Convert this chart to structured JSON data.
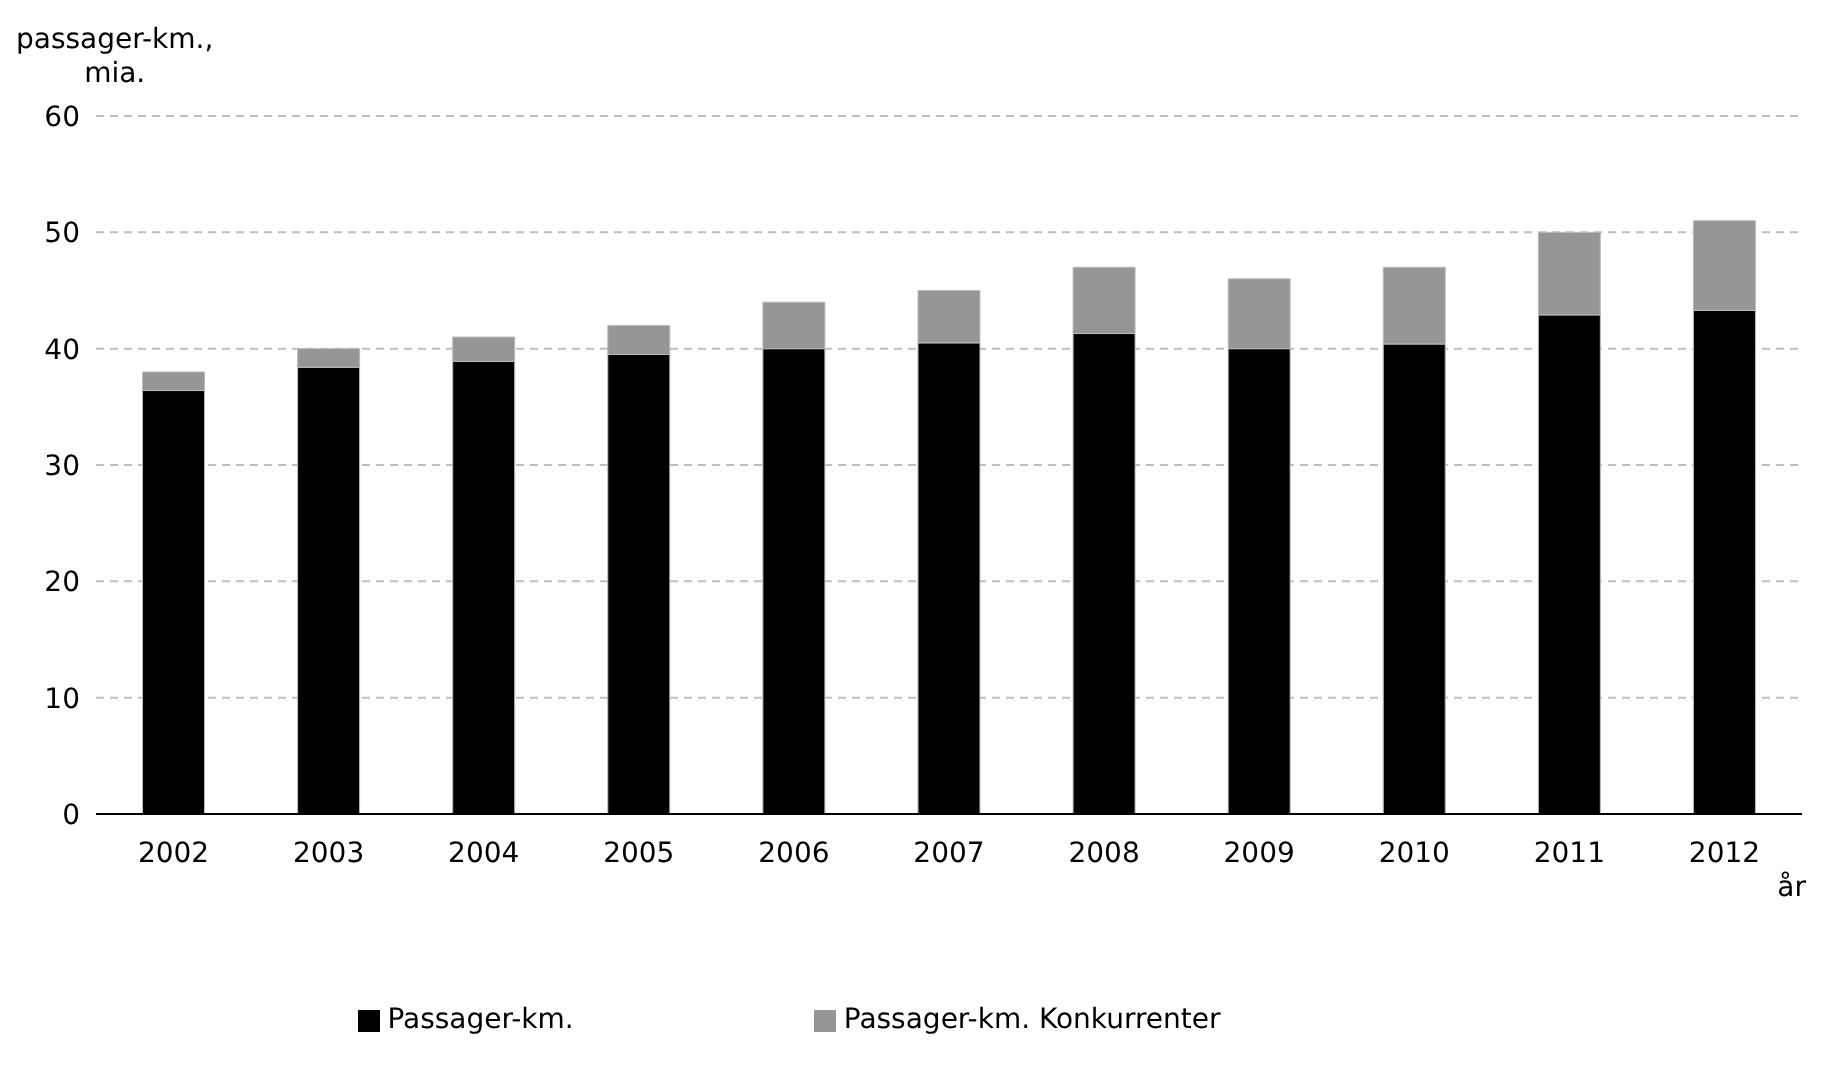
{
  "chart_data": {
    "type": "bar",
    "stacked": true,
    "ylabel": "passager-km.,\nmia.",
    "xlabel": "år",
    "categories": [
      "2002",
      "2003",
      "2004",
      "2005",
      "2006",
      "2007",
      "2008",
      "2009",
      "2010",
      "2011",
      "2012"
    ],
    "series": [
      {
        "name": "Passager-km.",
        "color": "#000000",
        "values": [
          36.4,
          38.4,
          38.9,
          39.5,
          40.0,
          40.5,
          41.3,
          40.0,
          40.4,
          42.9,
          43.3
        ]
      },
      {
        "name": "Passager-km. Konkurrenter",
        "color": "#969696",
        "values": [
          1.6,
          1.6,
          2.1,
          2.5,
          4.0,
          4.5,
          5.7,
          6.0,
          6.6,
          7.1,
          7.7
        ]
      }
    ],
    "ylim": [
      0,
      60
    ],
    "yticks": [
      0,
      10,
      20,
      30,
      40,
      50,
      60
    ],
    "grid": "y",
    "legend": "bottom"
  }
}
